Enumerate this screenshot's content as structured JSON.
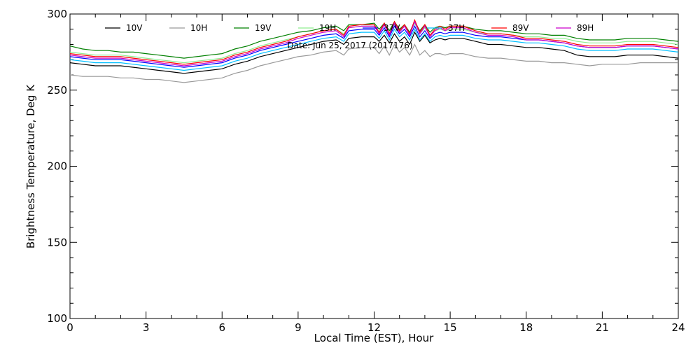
{
  "chart_data": {
    "type": "line",
    "title": "",
    "annotation": "Date: Jun 25, 2017 (2017176)",
    "xlabel": "Local Time (EST), Hour",
    "ylabel": "Brightness Temperature, Deg K",
    "xlim": [
      0,
      24
    ],
    "ylim": [
      100,
      300
    ],
    "xticks": [
      0,
      3,
      6,
      9,
      12,
      15,
      18,
      21,
      24
    ],
    "yticks": [
      100,
      150,
      200,
      250,
      300
    ],
    "grid": false,
    "legend_position": "top",
    "x": [
      0,
      0.5,
      1,
      1.5,
      2,
      2.5,
      3,
      3.5,
      4,
      4.5,
      5,
      5.5,
      6,
      6.5,
      7,
      7.5,
      8,
      8.5,
      9,
      9.5,
      10,
      10.5,
      10.8,
      11,
      11.5,
      12,
      12.2,
      12.4,
      12.6,
      12.8,
      13,
      13.2,
      13.4,
      13.6,
      13.8,
      14,
      14.2,
      14.4,
      14.6,
      14.8,
      15,
      15.5,
      16,
      16.5,
      17,
      17.5,
      18,
      18.5,
      19,
      19.5,
      20,
      20.5,
      21,
      21.5,
      22,
      22.5,
      23,
      23.5,
      24
    ],
    "series": [
      {
        "name": "10V",
        "color": "#000000",
        "values": [
          268,
          267,
          266,
          266,
          266,
          265,
          264,
          263,
          262,
          261,
          262,
          263,
          264,
          267,
          269,
          272,
          274,
          276,
          278,
          280,
          282,
          283,
          280,
          284,
          285,
          285,
          282,
          286,
          281,
          287,
          282,
          285,
          280,
          288,
          282,
          286,
          281,
          283,
          284,
          283,
          284,
          284,
          282,
          280,
          280,
          279,
          278,
          278,
          277,
          276,
          273,
          272,
          272,
          272,
          273,
          273,
          273,
          272,
          271
        ]
      },
      {
        "name": "10H",
        "color": "#999999",
        "values": [
          260,
          259,
          259,
          259,
          258,
          258,
          257,
          257,
          256,
          255,
          256,
          257,
          258,
          261,
          263,
          266,
          268,
          270,
          272,
          273,
          275,
          276,
          273,
          277,
          278,
          278,
          274,
          279,
          273,
          280,
          275,
          278,
          273,
          280,
          273,
          276,
          272,
          274,
          274,
          273,
          274,
          274,
          272,
          271,
          271,
          270,
          269,
          269,
          268,
          268,
          267,
          266,
          267,
          267,
          267,
          268,
          268,
          268,
          268
        ]
      },
      {
        "name": "19V",
        "color": "#008000",
        "values": [
          279,
          277,
          276,
          276,
          275,
          275,
          274,
          273,
          272,
          271,
          272,
          273,
          274,
          277,
          279,
          282,
          284,
          286,
          288,
          289,
          291,
          292,
          289,
          293,
          293,
          294,
          290,
          294,
          289,
          295,
          290,
          293,
          288,
          295,
          289,
          293,
          288,
          291,
          292,
          291,
          292,
          292,
          290,
          289,
          289,
          288,
          287,
          287,
          286,
          286,
          284,
          283,
          283,
          283,
          284,
          284,
          284,
          283,
          282
        ]
      },
      {
        "name": "19H",
        "color": "#90ee90",
        "values": [
          275,
          274,
          273,
          273,
          273,
          272,
          271,
          270,
          269,
          268,
          269,
          270,
          271,
          274,
          276,
          279,
          281,
          283,
          285,
          287,
          289,
          290,
          287,
          291,
          292,
          292,
          288,
          293,
          287,
          294,
          289,
          292,
          287,
          294,
          287,
          291,
          286,
          289,
          290,
          289,
          290,
          290,
          288,
          287,
          287,
          286,
          285,
          285,
          284,
          284,
          282,
          281,
          281,
          281,
          282,
          282,
          282,
          281,
          280
        ]
      },
      {
        "name": "37V",
        "color": "#0000ff",
        "values": [
          272,
          271,
          270,
          270,
          270,
          269,
          268,
          267,
          266,
          265,
          266,
          267,
          268,
          271,
          273,
          276,
          278,
          280,
          282,
          284,
          286,
          287,
          284,
          289,
          290,
          290,
          286,
          291,
          285,
          292,
          287,
          290,
          285,
          292,
          285,
          289,
          284,
          287,
          288,
          287,
          288,
          288,
          286,
          285,
          285,
          284,
          283,
          283,
          282,
          281,
          279,
          278,
          278,
          278,
          279,
          279,
          279,
          278,
          277
        ]
      },
      {
        "name": "37H",
        "color": "#00bfff",
        "values": [
          270,
          269,
          268,
          268,
          268,
          267,
          266,
          265,
          264,
          263,
          264,
          265,
          266,
          269,
          271,
          274,
          276,
          278,
          280,
          282,
          284,
          285,
          282,
          287,
          288,
          288,
          284,
          289,
          283,
          290,
          285,
          288,
          283,
          290,
          283,
          287,
          282,
          285,
          286,
          285,
          286,
          286,
          284,
          283,
          283,
          282,
          281,
          281,
          280,
          279,
          277,
          276,
          276,
          276,
          277,
          277,
          277,
          276,
          275
        ]
      },
      {
        "name": "89V",
        "color": "#ff0000",
        "values": [
          274,
          273,
          272,
          272,
          272,
          271,
          270,
          269,
          268,
          267,
          268,
          269,
          270,
          273,
          275,
          278,
          280,
          282,
          285,
          287,
          289,
          290,
          286,
          292,
          293,
          293,
          288,
          294,
          287,
          295,
          289,
          293,
          287,
          296,
          288,
          293,
          286,
          290,
          292,
          290,
          292,
          292,
          289,
          287,
          287,
          286,
          284,
          284,
          283,
          282,
          280,
          279,
          279,
          279,
          280,
          280,
          280,
          279,
          278
        ]
      },
      {
        "name": "89H",
        "color": "#cc00cc",
        "values": [
          273,
          272,
          271,
          271,
          271,
          270,
          269,
          268,
          267,
          266,
          267,
          268,
          269,
          272,
          274,
          277,
          279,
          281,
          284,
          286,
          288,
          289,
          285,
          291,
          292,
          292,
          287,
          293,
          286,
          294,
          288,
          292,
          286,
          295,
          287,
          292,
          285,
          289,
          291,
          289,
          291,
          291,
          288,
          286,
          286,
          285,
          283,
          283,
          282,
          281,
          279,
          278,
          278,
          278,
          279,
          279,
          279,
          278,
          277
        ]
      }
    ]
  }
}
